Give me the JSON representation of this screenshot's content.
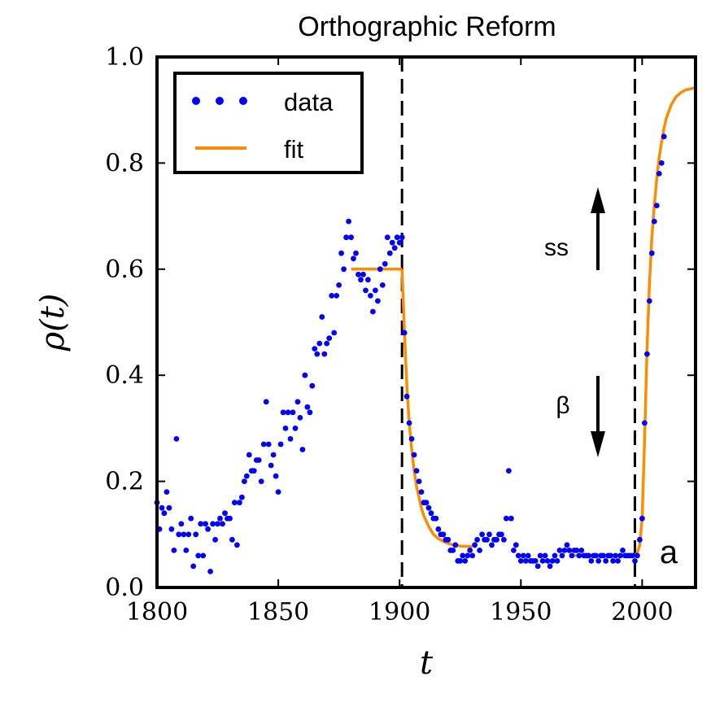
{
  "chart_data": {
    "type": "scatter",
    "title": "Orthographic Reform",
    "xlabel": "t",
    "ylabel": "ρ(t)",
    "xlim": [
      1800,
      2022
    ],
    "ylim": [
      0.0,
      1.0
    ],
    "xticks": [
      1800,
      1850,
      1900,
      1950,
      2000
    ],
    "xtick_labels": [
      "1800",
      "1850",
      "1900",
      "1950",
      "2000"
    ],
    "yticks": [
      0.0,
      0.2,
      0.4,
      0.6,
      0.8,
      1.0
    ],
    "ytick_labels": [
      "0.0",
      "0.2",
      "0.4",
      "0.6",
      "0.8",
      "1.0"
    ],
    "grid": false,
    "legend": {
      "location": "top-left",
      "entries": [
        {
          "label": "data",
          "style": "dots",
          "color": "#0000ff"
        },
        {
          "label": "fit",
          "style": "line",
          "color": "#ff8c00"
        }
      ]
    },
    "vlines": [
      1901,
      1997
    ],
    "annotations": [
      {
        "text": "ss",
        "x": 1980,
        "arrow": "up",
        "arrow_from": 0.6,
        "arrow_to": 0.75
      },
      {
        "text": "β",
        "x": 1980,
        "arrow": "down",
        "arrow_from": 0.4,
        "arrow_to": 0.25
      },
      {
        "text": "a",
        "position": "bottom-right"
      }
    ],
    "series": [
      {
        "name": "data",
        "color": "#0000ff",
        "points": [
          [
            1800,
            0.16
          ],
          [
            1801,
            0.11
          ],
          [
            1802,
            0.15
          ],
          [
            1803,
            0.14
          ],
          [
            1804,
            0.18
          ],
          [
            1805,
            0.15
          ],
          [
            1806,
            0.11
          ],
          [
            1807,
            0.07
          ],
          [
            1808,
            0.28
          ],
          [
            1809,
            0.1
          ],
          [
            1810,
            0.12
          ],
          [
            1811,
            0.1
          ],
          [
            1812,
            0.07
          ],
          [
            1813,
            0.1
          ],
          [
            1814,
            0.13
          ],
          [
            1815,
            0.04
          ],
          [
            1816,
            0.1
          ],
          [
            1817,
            0.06
          ],
          [
            1818,
            0.12
          ],
          [
            1819,
            0.06
          ],
          [
            1820,
            0.12
          ],
          [
            1821,
            0.11
          ],
          [
            1822,
            0.03
          ],
          [
            1823,
            0.12
          ],
          [
            1824,
            0.09
          ],
          [
            1825,
            0.12
          ],
          [
            1826,
            0.13
          ],
          [
            1827,
            0.12
          ],
          [
            1828,
            0.14
          ],
          [
            1829,
            0.13
          ],
          [
            1830,
            0.13
          ],
          [
            1831,
            0.09
          ],
          [
            1832,
            0.16
          ],
          [
            1833,
            0.08
          ],
          [
            1834,
            0.16
          ],
          [
            1835,
            0.17
          ],
          [
            1836,
            0.2
          ],
          [
            1837,
            0.21
          ],
          [
            1838,
            0.25
          ],
          [
            1839,
            0.22
          ],
          [
            1840,
            0.22
          ],
          [
            1841,
            0.24
          ],
          [
            1842,
            0.24
          ],
          [
            1843,
            0.2
          ],
          [
            1844,
            0.27
          ],
          [
            1845,
            0.35
          ],
          [
            1846,
            0.27
          ],
          [
            1847,
            0.23
          ],
          [
            1848,
            0.25
          ],
          [
            1849,
            0.21
          ],
          [
            1850,
            0.18
          ],
          [
            1851,
            0.27
          ],
          [
            1852,
            0.33
          ],
          [
            1853,
            0.3
          ],
          [
            1854,
            0.33
          ],
          [
            1855,
            0.28
          ],
          [
            1856,
            0.33
          ],
          [
            1857,
            0.3
          ],
          [
            1858,
            0.35
          ],
          [
            1859,
            0.32
          ],
          [
            1860,
            0.26
          ],
          [
            1861,
            0.4
          ],
          [
            1862,
            0.34
          ],
          [
            1863,
            0.33
          ],
          [
            1864,
            0.38
          ],
          [
            1865,
            0.45
          ],
          [
            1866,
            0.44
          ],
          [
            1867,
            0.46
          ],
          [
            1868,
            0.51
          ],
          [
            1869,
            0.44
          ],
          [
            1870,
            0.46
          ],
          [
            1871,
            0.47
          ],
          [
            1872,
            0.55
          ],
          [
            1873,
            0.48
          ],
          [
            1874,
            0.55
          ],
          [
            1875,
            0.57
          ],
          [
            1876,
            0.63
          ],
          [
            1877,
            0.6
          ],
          [
            1878,
            0.66
          ],
          [
            1879,
            0.69
          ],
          [
            1880,
            0.66
          ],
          [
            1881,
            0.62
          ],
          [
            1882,
            0.63
          ],
          [
            1883,
            0.59
          ],
          [
            1884,
            0.58
          ],
          [
            1885,
            0.59
          ],
          [
            1886,
            0.56
          ],
          [
            1887,
            0.58
          ],
          [
            1888,
            0.55
          ],
          [
            1889,
            0.52
          ],
          [
            1890,
            0.56
          ],
          [
            1891,
            0.54
          ],
          [
            1892,
            0.6
          ],
          [
            1893,
            0.57
          ],
          [
            1894,
            0.61
          ],
          [
            1895,
            0.66
          ],
          [
            1896,
            0.63
          ],
          [
            1897,
            0.65
          ],
          [
            1898,
            0.64
          ],
          [
            1899,
            0.66
          ],
          [
            1900,
            0.65
          ],
          [
            1901,
            0.66
          ],
          [
            1902,
            0.48
          ],
          [
            1903,
            0.36
          ],
          [
            1904,
            0.31
          ],
          [
            1905,
            0.28
          ],
          [
            1906,
            0.25
          ],
          [
            1907,
            0.22
          ],
          [
            1908,
            0.2
          ],
          [
            1909,
            0.18
          ],
          [
            1910,
            0.16
          ],
          [
            1911,
            0.16
          ],
          [
            1912,
            0.15
          ],
          [
            1913,
            0.14
          ],
          [
            1914,
            0.13
          ],
          [
            1915,
            0.13
          ],
          [
            1916,
            0.11
          ],
          [
            1917,
            0.1
          ],
          [
            1918,
            0.1
          ],
          [
            1919,
            0.09
          ],
          [
            1920,
            0.09
          ],
          [
            1921,
            0.07
          ],
          [
            1922,
            0.07
          ],
          [
            1923,
            0.08
          ],
          [
            1924,
            0.05
          ],
          [
            1925,
            0.05
          ],
          [
            1926,
            0.06
          ],
          [
            1927,
            0.05
          ],
          [
            1928,
            0.06
          ],
          [
            1929,
            0.07
          ],
          [
            1930,
            0.06
          ],
          [
            1931,
            0.08
          ],
          [
            1932,
            0.09
          ],
          [
            1933,
            0.07
          ],
          [
            1934,
            0.1
          ],
          [
            1935,
            0.09
          ],
          [
            1936,
            0.09
          ],
          [
            1937,
            0.1
          ],
          [
            1938,
            0.08
          ],
          [
            1939,
            0.09
          ],
          [
            1940,
            0.09
          ],
          [
            1941,
            0.1
          ],
          [
            1942,
            0.1
          ],
          [
            1943,
            0.09
          ],
          [
            1944,
            0.13
          ],
          [
            1945,
            0.22
          ],
          [
            1946,
            0.13
          ],
          [
            1947,
            0.07
          ],
          [
            1948,
            0.08
          ],
          [
            1949,
            0.06
          ],
          [
            1950,
            0.05
          ],
          [
            1951,
            0.06
          ],
          [
            1952,
            0.05
          ],
          [
            1953,
            0.06
          ],
          [
            1954,
            0.05
          ],
          [
            1955,
            0.05
          ],
          [
            1956,
            0.05
          ],
          [
            1957,
            0.04
          ],
          [
            1958,
            0.06
          ],
          [
            1959,
            0.05
          ],
          [
            1960,
            0.06
          ],
          [
            1961,
            0.05
          ],
          [
            1962,
            0.04
          ],
          [
            1963,
            0.05
          ],
          [
            1964,
            0.06
          ],
          [
            1965,
            0.05
          ],
          [
            1966,
            0.07
          ],
          [
            1967,
            0.06
          ],
          [
            1968,
            0.07
          ],
          [
            1969,
            0.08
          ],
          [
            1970,
            0.07
          ],
          [
            1971,
            0.06
          ],
          [
            1972,
            0.07
          ],
          [
            1973,
            0.07
          ],
          [
            1974,
            0.06
          ],
          [
            1975,
            0.07
          ],
          [
            1976,
            0.06
          ],
          [
            1977,
            0.06
          ],
          [
            1978,
            0.06
          ],
          [
            1979,
            0.05
          ],
          [
            1980,
            0.06
          ],
          [
            1981,
            0.06
          ],
          [
            1982,
            0.05
          ],
          [
            1983,
            0.06
          ],
          [
            1984,
            0.06
          ],
          [
            1985,
            0.05
          ],
          [
            1986,
            0.06
          ],
          [
            1987,
            0.06
          ],
          [
            1988,
            0.05
          ],
          [
            1989,
            0.06
          ],
          [
            1990,
            0.05
          ],
          [
            1991,
            0.06
          ],
          [
            1992,
            0.07
          ],
          [
            1993,
            0.06
          ],
          [
            1994,
            0.06
          ],
          [
            1995,
            0.06
          ],
          [
            1996,
            0.06
          ],
          [
            1997,
            0.05
          ],
          [
            1998,
            0.06
          ],
          [
            1999,
            0.09
          ],
          [
            2000,
            0.13
          ],
          [
            2001,
            0.31
          ],
          [
            2002,
            0.44
          ],
          [
            2003,
            0.54
          ],
          [
            2004,
            0.63
          ],
          [
            2005,
            0.69
          ],
          [
            2006,
            0.72
          ],
          [
            2007,
            0.78
          ],
          [
            2008,
            0.8
          ],
          [
            2009,
            0.85
          ]
        ]
      },
      {
        "name": "fit",
        "color": "#ff8c00",
        "segments": [
          [
            [
              1880,
              0.6
            ],
            [
              1901,
              0.6
            ]
          ],
          [
            [
              1901,
              0.6
            ],
            [
              1902,
              0.48
            ],
            [
              1903,
              0.38
            ],
            [
              1904,
              0.31
            ],
            [
              1905,
              0.26
            ],
            [
              1906,
              0.22
            ],
            [
              1907,
              0.19
            ],
            [
              1908,
              0.17
            ],
            [
              1909,
              0.15
            ],
            [
              1910,
              0.135
            ],
            [
              1912,
              0.115
            ],
            [
              1914,
              0.1
            ],
            [
              1916,
              0.092
            ],
            [
              1918,
              0.087
            ],
            [
              1920,
              0.083
            ],
            [
              1922,
              0.08
            ],
            [
              1925,
              0.078
            ],
            [
              1930,
              0.077
            ]
          ],
          [
            [
              1972,
              0.06
            ],
            [
              1997,
              0.06
            ],
            [
              1998,
              0.065
            ],
            [
              1999,
              0.08
            ],
            [
              2000,
              0.13
            ],
            [
              2001,
              0.28
            ],
            [
              2002,
              0.45
            ],
            [
              2003,
              0.57
            ],
            [
              2004,
              0.66
            ],
            [
              2005,
              0.72
            ],
            [
              2006,
              0.77
            ],
            [
              2007,
              0.81
            ],
            [
              2008,
              0.84
            ],
            [
              2009,
              0.865
            ],
            [
              2010,
              0.885
            ],
            [
              2012,
              0.91
            ],
            [
              2014,
              0.925
            ],
            [
              2016,
              0.933
            ],
            [
              2018,
              0.938
            ],
            [
              2022,
              0.942
            ]
          ]
        ]
      }
    ]
  }
}
